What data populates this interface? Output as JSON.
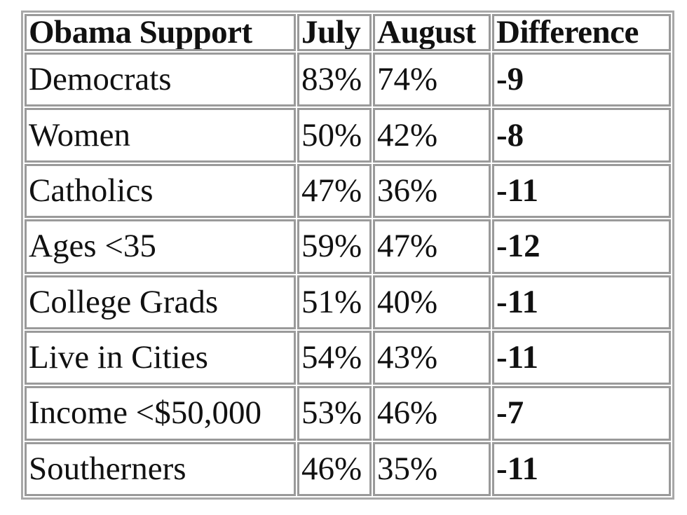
{
  "table": {
    "headers": [
      "Obama Support",
      "July",
      "August",
      "Difference"
    ],
    "rows": [
      {
        "group": "Democrats",
        "july": "83%",
        "august": "74%",
        "difference": "-9"
      },
      {
        "group": "Women",
        "july": "50%",
        "august": "42%",
        "difference": "-8"
      },
      {
        "group": "Catholics",
        "july": "47%",
        "august": "36%",
        "difference": "-11"
      },
      {
        "group": "Ages <35",
        "july": "59%",
        "august": "47%",
        "difference": "-12"
      },
      {
        "group": "College Grads",
        "july": "51%",
        "august": "40%",
        "difference": "-11"
      },
      {
        "group": "Live in Cities",
        "july": "54%",
        "august": "43%",
        "difference": "-11"
      },
      {
        "group": "Income <$50,000",
        "july": "53%",
        "august": "46%",
        "difference": "-7"
      },
      {
        "group": "Southerners",
        "july": "46%",
        "august": "35%",
        "difference": "-11"
      }
    ]
  }
}
